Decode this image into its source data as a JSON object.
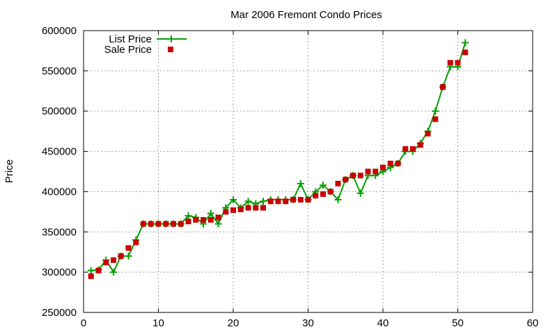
{
  "chart_data": {
    "type": "line",
    "title": "Mar 2006 Fremont Condo Prices",
    "xlabel": "",
    "ylabel": "Price",
    "xlim": [
      0,
      60
    ],
    "ylim": [
      250000,
      600000
    ],
    "x_ticks": [
      0,
      10,
      20,
      30,
      40,
      50,
      60
    ],
    "y_ticks": [
      250000,
      300000,
      350000,
      400000,
      450000,
      500000,
      550000,
      600000
    ],
    "x_tick_labels": [
      "0",
      "10",
      "20",
      "30",
      "40",
      "50",
      "60"
    ],
    "y_tick_labels": [
      "250000",
      "300000",
      "350000",
      "400000",
      "450000",
      "500000",
      "550000",
      "600000"
    ],
    "grid": true,
    "legend_position": "top-left",
    "series": [
      {
        "name": "List Price",
        "style": "line-plus",
        "color": "#00a000",
        "x": [
          1,
          2,
          3,
          4,
          5,
          6,
          7,
          8,
          9,
          10,
          11,
          12,
          13,
          14,
          15,
          16,
          17,
          18,
          19,
          20,
          21,
          22,
          23,
          24,
          25,
          26,
          27,
          28,
          29,
          30,
          31,
          32,
          33,
          34,
          35,
          36,
          37,
          38,
          39,
          40,
          41,
          42,
          43,
          44,
          45,
          46,
          47,
          48,
          49,
          50,
          51
        ],
        "values": [
          302000,
          303000,
          315000,
          300000,
          320000,
          320000,
          340000,
          360000,
          360000,
          360000,
          360000,
          360000,
          360000,
          370000,
          368000,
          360000,
          373000,
          360000,
          380000,
          390000,
          380000,
          388000,
          385000,
          388000,
          390000,
          390000,
          390000,
          390000,
          410000,
          390000,
          400000,
          408000,
          400000,
          390000,
          415000,
          420000,
          398000,
          420000,
          420000,
          425000,
          430000,
          435000,
          450000,
          450000,
          460000,
          475000,
          500000,
          530000,
          555000,
          555000,
          585000
        ]
      },
      {
        "name": "Sale Price",
        "style": "square-points",
        "color": "#cc0000",
        "x": [
          1,
          2,
          3,
          4,
          5,
          6,
          7,
          8,
          9,
          10,
          11,
          12,
          13,
          14,
          15,
          16,
          17,
          18,
          19,
          20,
          21,
          22,
          23,
          24,
          25,
          26,
          27,
          28,
          29,
          30,
          31,
          32,
          33,
          34,
          35,
          36,
          37,
          38,
          39,
          40,
          41,
          42,
          43,
          44,
          45,
          46,
          47,
          48,
          49,
          50,
          51
        ],
        "values": [
          295000,
          302000,
          312000,
          315000,
          320000,
          330000,
          337000,
          360000,
          360000,
          360000,
          360000,
          360000,
          360000,
          363000,
          365000,
          365000,
          365000,
          368000,
          375000,
          377000,
          378000,
          380000,
          380000,
          380000,
          388000,
          388000,
          388000,
          390000,
          390000,
          390000,
          395000,
          397000,
          400000,
          410000,
          415000,
          420000,
          420000,
          425000,
          425000,
          430000,
          435000,
          435000,
          453000,
          453000,
          458000,
          472000,
          490000,
          530000,
          560000,
          560000,
          573000
        ]
      }
    ]
  }
}
